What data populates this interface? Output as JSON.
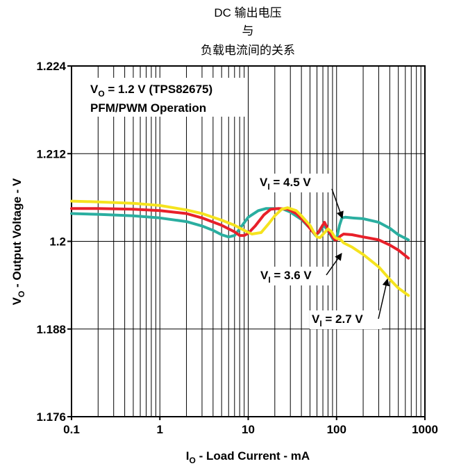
{
  "chart_data": {
    "type": "line",
    "title_lines": [
      "DC 输出电压",
      "与",
      "负载电流间的关系"
    ],
    "xlabel": {
      "main": "I",
      "sub": "O",
      "rest": " - Load Current - mA"
    },
    "ylabel": {
      "main": "V",
      "sub": "O",
      "rest": " - Output Voltage - V"
    },
    "x_scale": "log",
    "xlim": [
      0.1,
      1000
    ],
    "ylim": [
      1.176,
      1.224
    ],
    "x_ticks": [
      0.1,
      1,
      10,
      100,
      1000
    ],
    "x_tick_labels": [
      "0.1",
      "1",
      "10",
      "100",
      "1000"
    ],
    "y_ticks": [
      1.176,
      1.188,
      1.2,
      1.212,
      1.224
    ],
    "y_tick_labels": [
      "1.176",
      "1.188",
      "1.2",
      "1.212",
      "1.224"
    ],
    "grid": true,
    "annotation": {
      "line1": {
        "main": "V",
        "sub": "O",
        "rest": " = 1.2 V (TPS82675)"
      },
      "line2": "PFM/PWM Operation"
    },
    "series": [
      {
        "name": "V_I = 4.5 V",
        "label": {
          "main": "V",
          "sub": "I",
          "rest": " = 4.5 V"
        },
        "color": "#2aaea0",
        "x": [
          0.1,
          0.2,
          0.5,
          1,
          2,
          3,
          4,
          5,
          6,
          7,
          8,
          10,
          13,
          16,
          20,
          25,
          30,
          40,
          50,
          58,
          65,
          72,
          78,
          85,
          92,
          100,
          108,
          115,
          125,
          150,
          200,
          300,
          400,
          500,
          650
        ],
        "y": [
          1.2038,
          1.2037,
          1.2035,
          1.2032,
          1.2027,
          1.2021,
          1.2015,
          1.2009,
          1.2006,
          1.2008,
          1.2017,
          1.2033,
          1.2042,
          1.2045,
          1.2045,
          1.2044,
          1.204,
          1.203,
          1.2018,
          1.2008,
          1.2014,
          1.2022,
          1.2016,
          1.2009,
          1.2002,
          1.2004,
          1.2022,
          1.2032,
          1.2033,
          1.2032,
          1.2031,
          1.2026,
          1.2018,
          1.2009,
          1.2002
        ]
      },
      {
        "name": "V_I = 3.6 V",
        "label": {
          "main": "V",
          "sub": "I",
          "rest": " = 3.6 V"
        },
        "color": "#e8202a",
        "x": [
          0.1,
          0.2,
          0.5,
          1,
          2,
          3,
          5,
          7,
          8,
          9,
          10,
          12,
          15,
          18,
          22,
          28,
          35,
          45,
          52,
          58,
          62,
          68,
          73,
          78,
          83,
          90,
          95,
          100,
          110,
          120,
          150,
          200,
          300,
          400,
          500,
          650
        ],
        "y": [
          1.2045,
          1.2045,
          1.2044,
          1.2042,
          1.2038,
          1.2032,
          1.2022,
          1.2013,
          1.2008,
          1.2008,
          1.2011,
          1.2021,
          1.2036,
          1.2044,
          1.2045,
          1.2044,
          1.2038,
          1.2025,
          1.2015,
          1.2009,
          1.2012,
          1.202,
          1.2026,
          1.2019,
          1.2012,
          1.2006,
          1.2002,
          1.2002,
          1.2007,
          1.201,
          1.2009,
          1.2006,
          1.2002,
          1.1995,
          1.1988,
          1.1977
        ]
      },
      {
        "name": "V_I = 2.7 V",
        "label": {
          "main": "V",
          "sub": "I",
          "rest": " = 2.7 V"
        },
        "color": "#f5e31e",
        "x": [
          0.1,
          0.2,
          0.5,
          1,
          2,
          3,
          5,
          7,
          9,
          11,
          14,
          17,
          20,
          24,
          28,
          35,
          40,
          50,
          55,
          60,
          65,
          72,
          80,
          88,
          95,
          100,
          110,
          120,
          150,
          200,
          300,
          400,
          500,
          650
        ],
        "y": [
          1.2055,
          1.2054,
          1.2052,
          1.2049,
          1.2043,
          1.2038,
          1.2029,
          1.2022,
          1.2015,
          1.201,
          1.2012,
          1.2024,
          1.2035,
          1.2044,
          1.2046,
          1.2042,
          1.2035,
          1.2022,
          1.2013,
          1.2006,
          1.2005,
          1.2011,
          1.2017,
          1.2013,
          1.2006,
          1.2004,
          1.2003,
          1.1998,
          1.1992,
          1.1982,
          1.1965,
          1.1948,
          1.1936,
          1.1926
        ]
      }
    ]
  }
}
